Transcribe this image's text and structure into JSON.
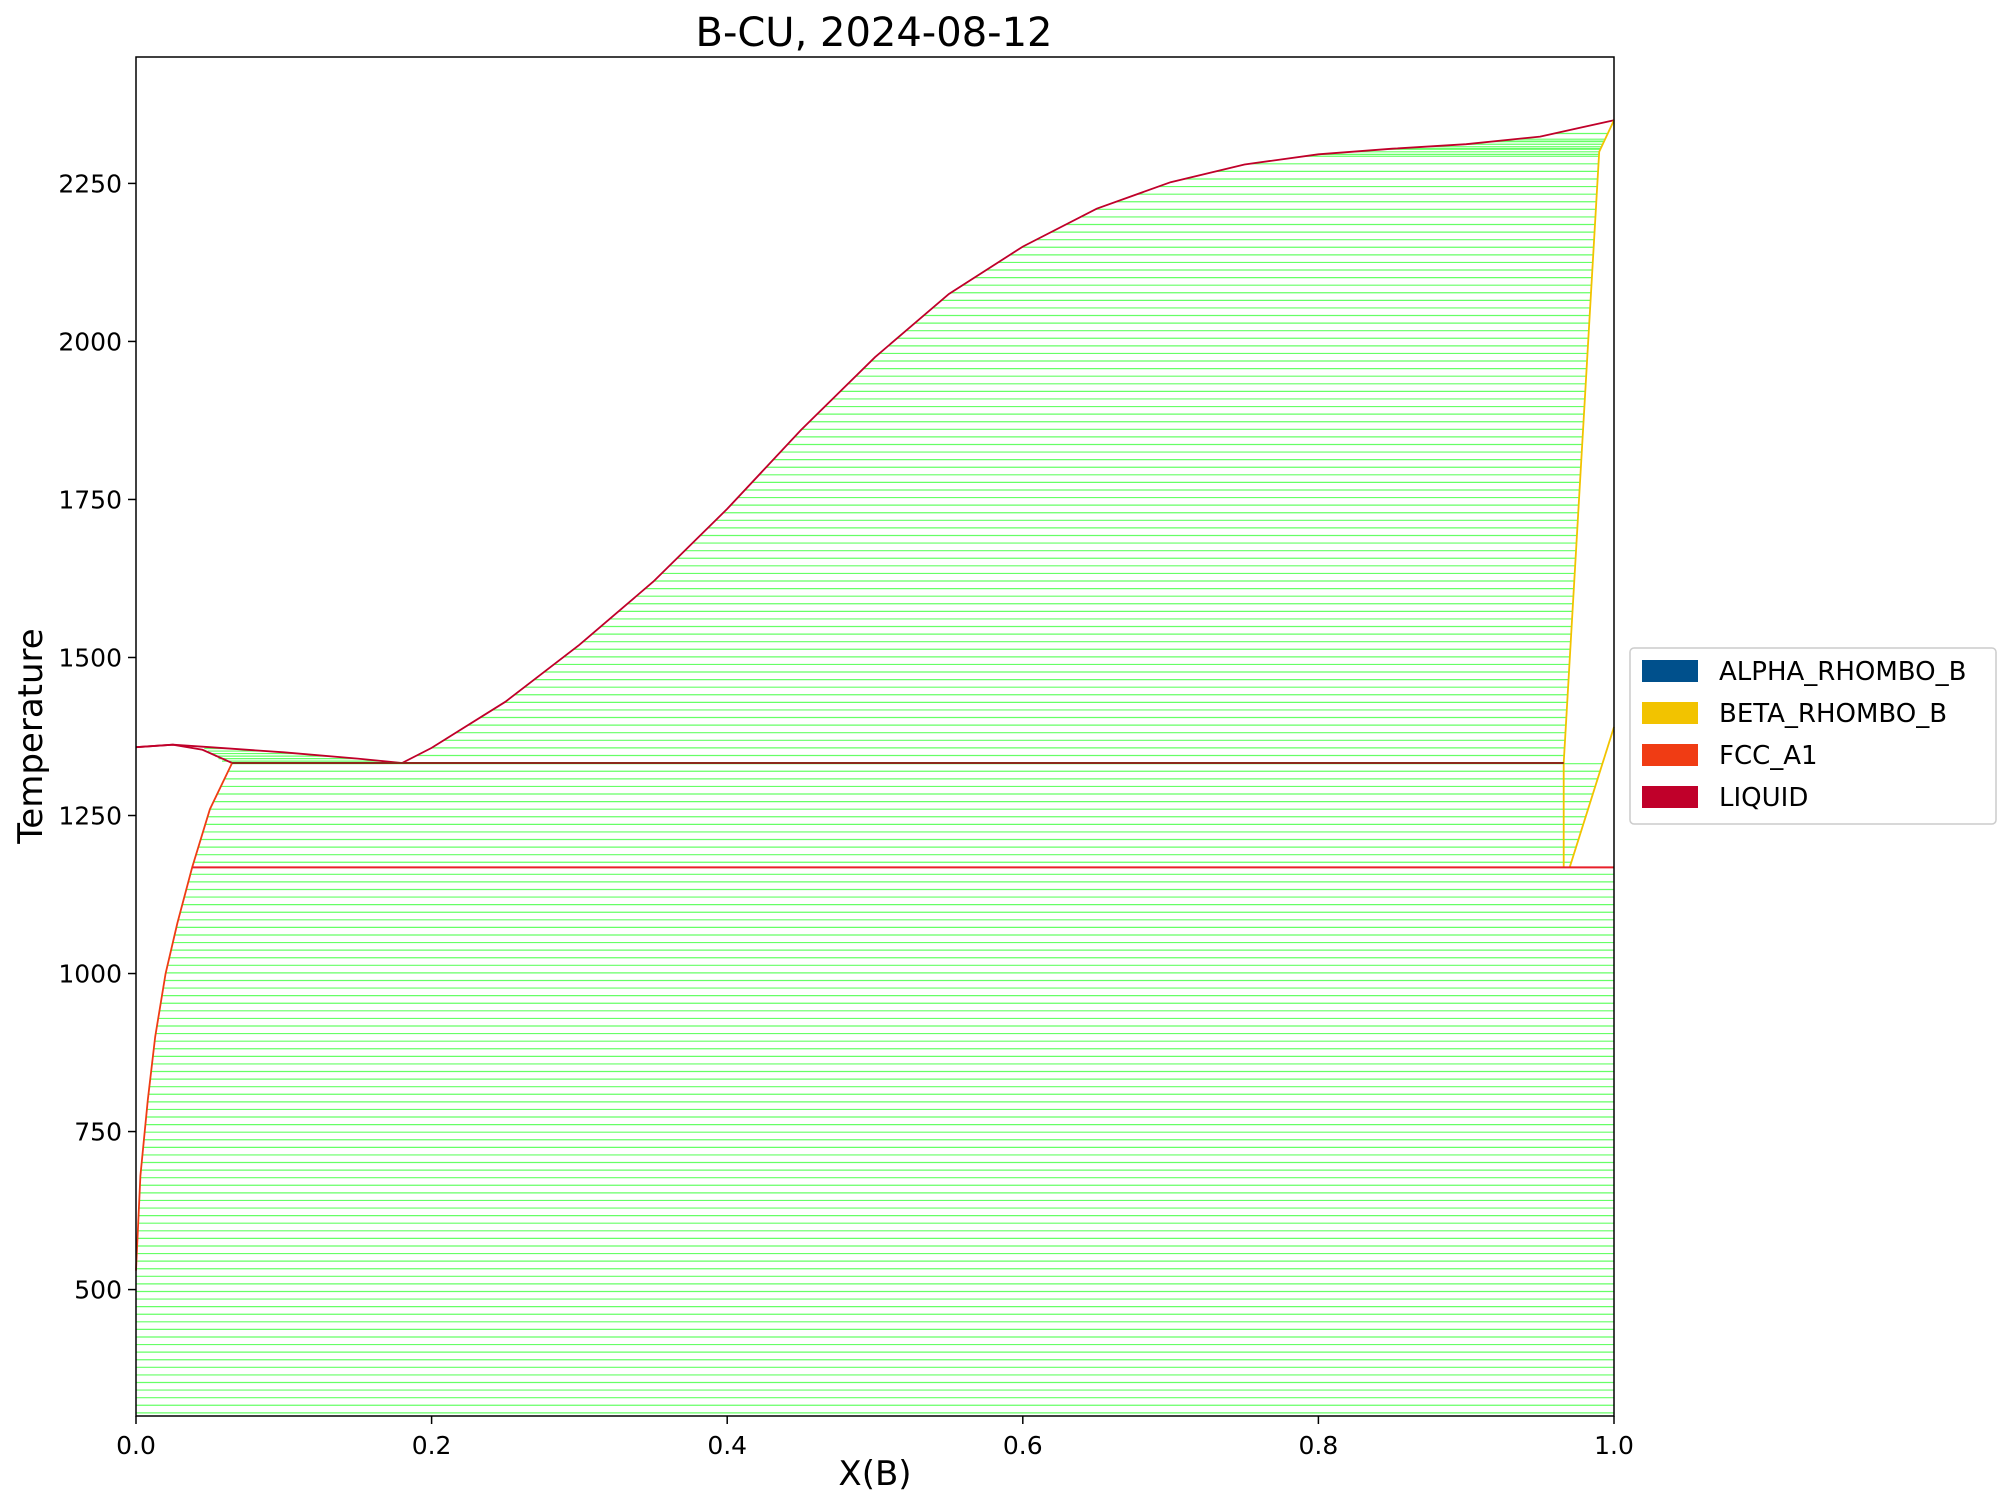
{
  "chart_data": {
    "type": "line",
    "title": "B-CU, 2024-08-12",
    "xlabel": "X(B)",
    "ylabel": "Temperature",
    "xlim": [
      0.0,
      1.0
    ],
    "ylim": [
      300,
      2450
    ],
    "x_ticks": [
      "0.0",
      "0.2",
      "0.4",
      "0.6",
      "0.8",
      "1.0"
    ],
    "x_tick_values": [
      0.0,
      0.2,
      0.4,
      0.6,
      0.8,
      1.0
    ],
    "y_ticks": [
      "500",
      "750",
      "1000",
      "1250",
      "1500",
      "1750",
      "2000",
      "2250"
    ],
    "y_tick_values": [
      500,
      750,
      1000,
      1250,
      1500,
      1750,
      2000,
      2250
    ],
    "grid": false,
    "legend_position": "right",
    "legend": [
      {
        "name": "ALPHA_RHOMBO_B",
        "color": "#00508C"
      },
      {
        "name": "BETA_RHOMBO_B",
        "color": "#F2C300"
      },
      {
        "name": "FCC_A1",
        "color": "#F03C14"
      },
      {
        "name": "LIQUID",
        "color": "#C0002A"
      }
    ],
    "tieline_color": "#66FF66",
    "phase_boundaries": [
      {
        "phase": "LIQUID",
        "color": "#C0002A",
        "points": [
          [
            0.0,
            1358
          ],
          [
            0.025,
            1362
          ],
          [
            0.05,
            1358
          ],
          [
            0.1,
            1350
          ],
          [
            0.15,
            1340
          ],
          [
            0.18,
            1333
          ],
          [
            0.2,
            1357
          ],
          [
            0.25,
            1430
          ],
          [
            0.3,
            1520
          ],
          [
            0.35,
            1620
          ],
          [
            0.4,
            1735
          ],
          [
            0.45,
            1860
          ],
          [
            0.5,
            1975
          ],
          [
            0.55,
            2075
          ],
          [
            0.6,
            2150
          ],
          [
            0.65,
            2210
          ],
          [
            0.7,
            2252
          ],
          [
            0.75,
            2280
          ],
          [
            0.8,
            2296
          ],
          [
            0.85,
            2305
          ],
          [
            0.9,
            2312
          ],
          [
            0.95,
            2324
          ],
          [
            1.0,
            2350
          ]
        ]
      },
      {
        "phase": "LIQUID",
        "color": "#C0002A",
        "points": [
          [
            0.0,
            1358
          ],
          [
            0.025,
            1362
          ],
          [
            0.045,
            1354
          ],
          [
            0.065,
            1333
          ]
        ]
      },
      {
        "phase": "FCC_A1",
        "color": "#F03C14",
        "points": [
          [
            0.0,
            530
          ],
          [
            0.003,
            680
          ],
          [
            0.008,
            800
          ],
          [
            0.013,
            900
          ],
          [
            0.02,
            1000
          ],
          [
            0.028,
            1080
          ],
          [
            0.038,
            1168
          ],
          [
            0.05,
            1260
          ],
          [
            0.065,
            1333
          ]
        ]
      },
      {
        "phase": "BETA_RHOMBO_B",
        "color": "#F2C300",
        "points": [
          [
            0.966,
            1168
          ],
          [
            0.966,
            1333
          ],
          [
            0.99,
            2300
          ],
          [
            1.0,
            2350
          ]
        ]
      },
      {
        "phase": "BETA_RHOMBO_B",
        "color": "#F2C300",
        "points": [
          [
            0.97,
            1168
          ],
          [
            1.0,
            1390
          ]
        ]
      }
    ],
    "invariant_lines": [
      {
        "temperature": 1333,
        "x_from": 0.065,
        "x_to": 0.966,
        "color": "#8B2A1A"
      },
      {
        "temperature": 1168,
        "x_from": 0.038,
        "x_to": 1.0,
        "color": "#E8202A"
      }
    ]
  }
}
